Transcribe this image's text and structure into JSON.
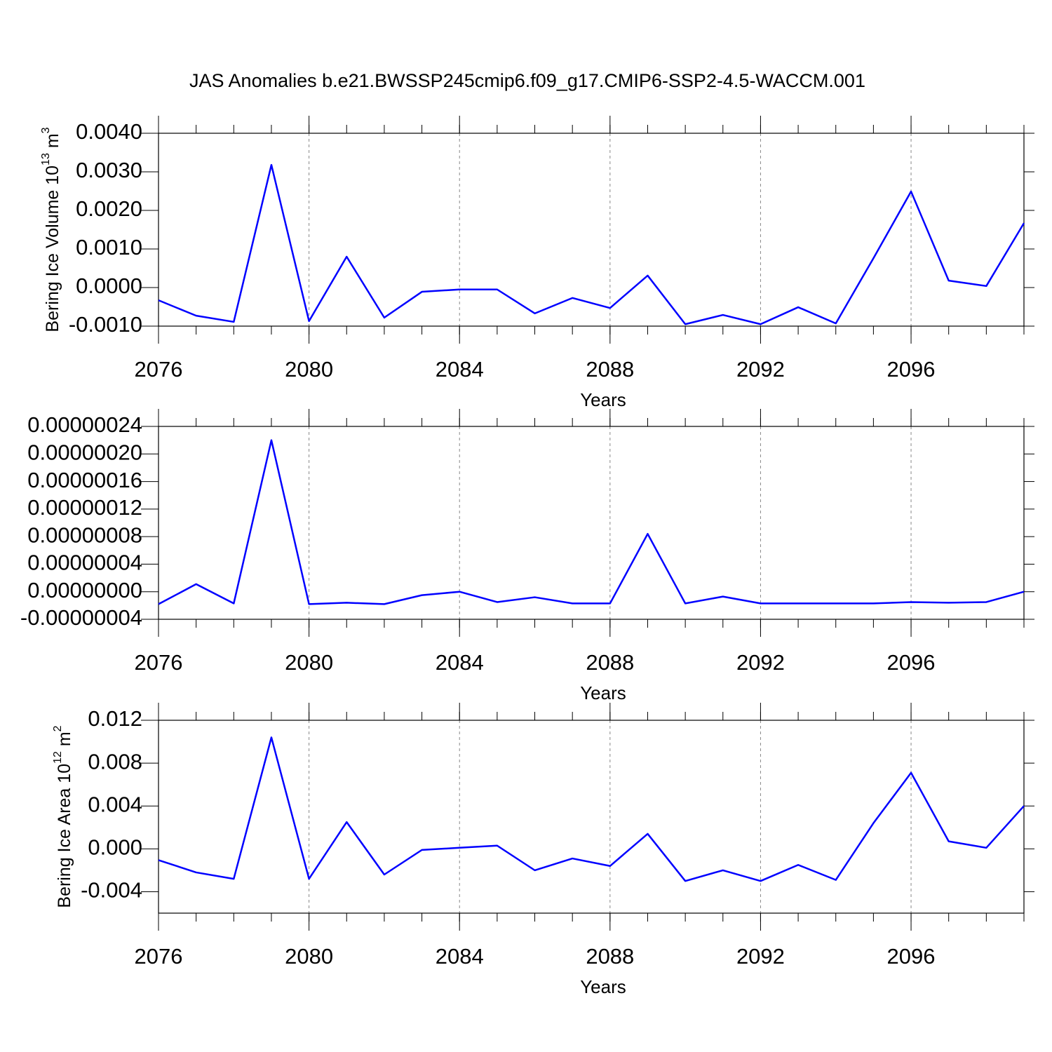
{
  "chart_data": [
    {
      "type": "line",
      "title": "JAS Anomalies b.e21.BWSSP245cmip6.f09_g17.CMIP6-SSP2-4.5-WACCM.001",
      "xlabel": "Years",
      "ylabel": [
        "Bering Ice Volume 10",
        "13",
        " m",
        "3"
      ],
      "x": [
        2076,
        2077,
        2078,
        2079,
        2080,
        2081,
        2082,
        2083,
        2084,
        2085,
        2086,
        2087,
        2088,
        2089,
        2090,
        2091,
        2092,
        2093,
        2094,
        2095,
        2096,
        2097,
        2098,
        2099
      ],
      "series": [
        {
          "color": "#0000ff",
          "values": [
            -0.00033,
            -0.00073,
            -0.00089,
            0.00318,
            -0.00087,
            0.0008,
            -0.00078,
            -0.00011,
            -5e-05,
            -5e-05,
            -0.00067,
            -0.00027,
            -0.00053,
            0.00031,
            -0.00095,
            -0.00071,
            -0.00095,
            -0.00051,
            -0.00093,
            0.00076,
            0.00249,
            0.00018,
            4e-05,
            0.00167
          ]
        }
      ],
      "xlim": [
        2076,
        2099
      ],
      "xticks": [
        2076,
        2080,
        2084,
        2088,
        2092,
        2096
      ],
      "ylim": [
        -0.001,
        0.004
      ],
      "yticks": [
        {
          "value": -0.001,
          "label": "-0.0010"
        },
        {
          "value": 0,
          "label": "0.0000"
        },
        {
          "value": 0.001,
          "label": "0.0010"
        },
        {
          "value": 0.002,
          "label": "0.0020"
        },
        {
          "value": 0.003,
          "label": "0.0030"
        },
        {
          "value": 0.004,
          "label": "0.0040"
        }
      ],
      "xgrid": true
    },
    {
      "type": "line",
      "xlabel": "Years",
      "x": [
        2076,
        2077,
        2078,
        2079,
        2080,
        2081,
        2082,
        2083,
        2084,
        2085,
        2086,
        2087,
        2088,
        2089,
        2090,
        2091,
        2092,
        2093,
        2094,
        2095,
        2096,
        2097,
        2098,
        2099
      ],
      "series": [
        {
          "color": "#0000ff",
          "values": [
            -1.8e-08,
            1.1e-08,
            -1.7e-08,
            2.2e-07,
            -1.8e-08,
            -1.6e-08,
            -1.8e-08,
            -5e-09,
            0,
            -1.5e-08,
            -8e-09,
            -1.7e-08,
            -1.7e-08,
            8.4e-08,
            -1.7e-08,
            -7e-09,
            -1.7e-08,
            -1.7e-08,
            -1.7e-08,
            -1.7e-08,
            -1.5e-08,
            -1.6e-08,
            -1.5e-08,
            0
          ]
        }
      ],
      "xlim": [
        2076,
        2099
      ],
      "xticks": [
        2076,
        2080,
        2084,
        2088,
        2092,
        2096
      ],
      "ylim": [
        -4e-08,
        2.4e-07
      ],
      "yticks": [
        {
          "value": -4e-08,
          "label": "-0.00000004"
        },
        {
          "value": 0,
          "label": "0.00000000"
        },
        {
          "value": 4e-08,
          "label": "0.00000004"
        },
        {
          "value": 8e-08,
          "label": "0.00000008"
        },
        {
          "value": 1.2e-07,
          "label": "0.00000012"
        },
        {
          "value": 1.6e-07,
          "label": "0.00000016"
        },
        {
          "value": 2e-07,
          "label": "0.00000020"
        },
        {
          "value": 2.4e-07,
          "label": "0.00000024"
        }
      ],
      "xgrid": true
    },
    {
      "type": "line",
      "xlabel": "Years",
      "ylabel": [
        "Bering Ice Area 10",
        "12",
        " m",
        "2"
      ],
      "x": [
        2076,
        2077,
        2078,
        2079,
        2080,
        2081,
        2082,
        2083,
        2084,
        2085,
        2086,
        2087,
        2088,
        2089,
        2090,
        2091,
        2092,
        2093,
        2094,
        2095,
        2096,
        2097,
        2098,
        2099
      ],
      "series": [
        {
          "color": "#0000ff",
          "values": [
            -0.00105,
            -0.0022,
            -0.0028,
            0.0104,
            -0.0028,
            0.0025,
            -0.0024,
            -0.0001,
            0.0001,
            0.0003,
            -0.002,
            -0.0009,
            -0.0016,
            0.0014,
            -0.003,
            -0.002,
            -0.003,
            -0.0015,
            -0.0029,
            0.0024,
            0.0071,
            0.0007,
            0.0001,
            0.004
          ]
        }
      ],
      "xlim": [
        2076,
        2099
      ],
      "xticks": [
        2076,
        2080,
        2084,
        2088,
        2092,
        2096
      ],
      "ylim": [
        -0.006,
        0.012
      ],
      "yticks": [
        {
          "value": -0.004,
          "label": "-0.004"
        },
        {
          "value": 0,
          "label": "0.000"
        },
        {
          "value": 0.004,
          "label": "0.004"
        },
        {
          "value": 0.008,
          "label": "0.008"
        },
        {
          "value": 0.012,
          "label": "0.012"
        }
      ],
      "xgrid": true
    }
  ]
}
